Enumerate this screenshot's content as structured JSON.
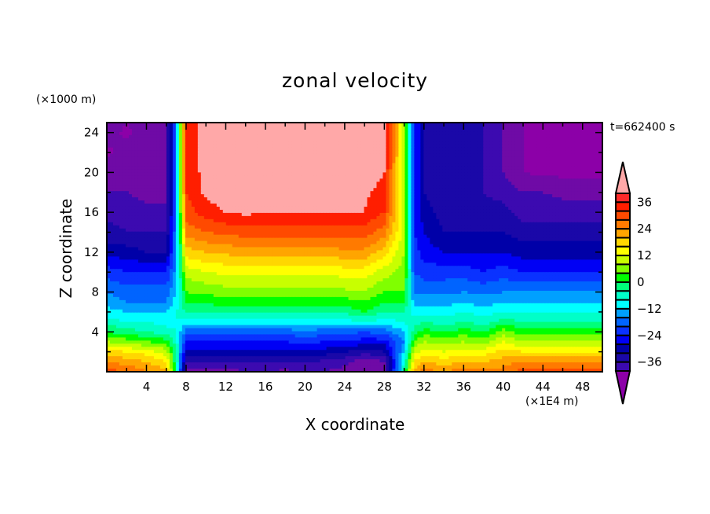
{
  "chart_data": {
    "type": "heatmap",
    "subtype": "filled-contour",
    "title": "zonal velocity",
    "xlabel": "X coordinate",
    "ylabel": "Z coordinate",
    "x_unit_label": "(×1E4 m)",
    "y_unit_label": "(×1000 m)",
    "time_label": "t=662400 s",
    "xlim": [
      0,
      50
    ],
    "ylim": [
      0,
      25
    ],
    "x_ticks": [
      4,
      8,
      12,
      16,
      20,
      24,
      28,
      32,
      36,
      40,
      44,
      48
    ],
    "x_tick_labels": [
      "4",
      "8",
      "12",
      "16",
      "20",
      "24",
      "28",
      "32",
      "36",
      "40",
      "44",
      "48"
    ],
    "x_minor_step": 2,
    "y_ticks": [
      4,
      8,
      12,
      16,
      20,
      24
    ],
    "y_tick_labels": [
      "4",
      "8",
      "12",
      "16",
      "20",
      "24"
    ],
    "y_minor_step": 2,
    "colorbar": {
      "levels": [
        -40,
        -36,
        -32,
        -28,
        -24,
        -20,
        -16,
        -12,
        -8,
        -4,
        0,
        4,
        8,
        12,
        16,
        20,
        24,
        28,
        32,
        36,
        40
      ],
      "tick_values": [
        36,
        24,
        12,
        0,
        -12,
        -24,
        -36
      ],
      "tick_labels": [
        "36",
        "24",
        "12",
        "0",
        "−12",
        "−24",
        "−36"
      ],
      "colors": [
        "#6f0aa6",
        "#3c0ab0",
        "#1a08a8",
        "#0000a8",
        "#0000f5",
        "#0a32ff",
        "#0064ff",
        "#00a0ff",
        "#00ffff",
        "#00ffc8",
        "#00ff7a",
        "#00ff00",
        "#80ff00",
        "#c8ff00",
        "#ffff00",
        "#ffd700",
        "#ffa500",
        "#ff7a00",
        "#ff4a00",
        "#ff1e00",
        "#ff2a2a"
      ],
      "over_color": "#ffa8a8",
      "under_color": "#8c00a8"
    },
    "grid_x": [
      0,
      2,
      4,
      6,
      7,
      8,
      10,
      12,
      14,
      16,
      18,
      20,
      22,
      24,
      26,
      28,
      30,
      31,
      32,
      34,
      36,
      38,
      40,
      42,
      44,
      46,
      48,
      50
    ],
    "grid_z": [
      0,
      1,
      2,
      3,
      4,
      5,
      6,
      7,
      8,
      10,
      12,
      14,
      16,
      18,
      20,
      22,
      24,
      25
    ],
    "values": [
      [
        34,
        32,
        28,
        26,
        0,
        -38,
        -38,
        -38,
        -36,
        -36,
        -37,
        -36,
        -36,
        -38,
        -37,
        -38,
        0,
        26,
        30,
        28,
        30,
        30,
        30,
        34,
        34,
        34,
        34,
        34
      ],
      [
        28,
        26,
        24,
        20,
        0,
        -32,
        -32,
        -32,
        -31,
        -32,
        -32,
        -31,
        -33,
        -34,
        -40,
        -36,
        -4,
        20,
        24,
        22,
        24,
        24,
        26,
        28,
        28,
        28,
        28,
        28
      ],
      [
        22,
        20,
        18,
        14,
        0,
        -26,
        -26,
        -26,
        -26,
        -26,
        -26,
        -25,
        -26,
        -28,
        -30,
        -28,
        -8,
        14,
        18,
        16,
        18,
        18,
        22,
        20,
        20,
        20,
        20,
        20
      ],
      [
        12,
        10,
        8,
        6,
        -2,
        -20,
        -20,
        -20,
        -20,
        -20,
        -20,
        -19,
        -20,
        -20,
        -22,
        -22,
        -12,
        8,
        12,
        10,
        12,
        10,
        16,
        12,
        12,
        12,
        12,
        12
      ],
      [
        4,
        2,
        0,
        -2,
        -4,
        -14,
        -14,
        -14,
        -14,
        -14,
        -14,
        -13,
        -14,
        -14,
        -16,
        -14,
        -8,
        2,
        6,
        4,
        6,
        4,
        10,
        6,
        6,
        6,
        6,
        6
      ],
      [
        -2,
        -4,
        -4,
        -6,
        -4,
        -6,
        -6,
        -6,
        -6,
        -6,
        -6,
        -6,
        -6,
        -6,
        -4,
        -6,
        -4,
        -2,
        0,
        -2,
        0,
        -2,
        2,
        0,
        0,
        0,
        0,
        0
      ],
      [
        -6,
        -8,
        -8,
        -8,
        -4,
        0,
        0,
        1,
        1,
        1,
        1,
        1,
        1,
        1,
        4,
        0,
        0,
        -6,
        -6,
        -6,
        -4,
        -6,
        -4,
        -4,
        -4,
        -4,
        -4,
        -4
      ],
      [
        -10,
        -12,
        -12,
        -12,
        -6,
        4,
        5,
        6,
        6,
        6,
        6,
        6,
        6,
        6,
        8,
        4,
        4,
        -10,
        -10,
        -10,
        -8,
        -10,
        -8,
        -8,
        -8,
        -8,
        -8,
        -8
      ],
      [
        -12,
        -14,
        -14,
        -14,
        -8,
        8,
        9,
        10,
        10,
        10,
        10,
        10,
        10,
        11,
        12,
        8,
        8,
        -12,
        -13,
        -13,
        -12,
        -13,
        -12,
        -12,
        -12,
        -12,
        -12,
        -12
      ],
      [
        -18,
        -20,
        -20,
        -20,
        -10,
        14,
        16,
        17,
        17,
        17,
        17,
        17,
        17,
        18,
        18,
        14,
        10,
        -16,
        -18,
        -18,
        -18,
        -20,
        -18,
        -20,
        -20,
        -20,
        -20,
        -20
      ],
      [
        -26,
        -26,
        -28,
        -28,
        -12,
        22,
        24,
        25,
        26,
        26,
        26,
        26,
        26,
        27,
        27,
        22,
        12,
        -18,
        -22,
        -24,
        -24,
        -24,
        -24,
        -26,
        -26,
        -26,
        -26,
        -26
      ],
      [
        -30,
        -32,
        -32,
        -32,
        -12,
        30,
        32,
        33,
        34,
        34,
        34,
        34,
        34,
        34,
        34,
        30,
        14,
        -20,
        -24,
        -28,
        -28,
        -28,
        -28,
        -30,
        -30,
        -30,
        -30,
        -30
      ],
      [
        -34,
        -34,
        -35,
        -36,
        -12,
        34,
        38,
        40,
        41,
        40,
        40,
        40,
        40,
        40,
        40,
        36,
        14,
        -20,
        -26,
        -30,
        -30,
        -30,
        -30,
        -34,
        -34,
        -34,
        -34,
        -34
      ],
      [
        -36,
        -36,
        -37,
        -36,
        -12,
        36,
        41,
        43,
        43,
        42,
        42,
        42,
        41,
        41,
        41,
        38,
        14,
        -20,
        -28,
        -31,
        -31,
        -32,
        -34,
        -36,
        -36,
        -37,
        -37,
        -37
      ],
      [
        -38,
        -38,
        -37,
        -36,
        -12,
        36,
        42,
        44,
        44,
        44,
        44,
        44,
        44,
        44,
        44,
        40,
        14,
        -20,
        -28,
        -32,
        -32,
        -32,
        -36,
        -40,
        -41,
        -41,
        -41,
        -41
      ],
      [
        -41,
        -38,
        -37,
        -36,
        -12,
        36,
        42,
        44,
        44,
        44,
        44,
        44,
        44,
        44,
        44,
        42,
        14,
        -20,
        -28,
        -32,
        -32,
        -32,
        -36,
        -40,
        -42,
        -42,
        -42,
        -41
      ],
      [
        -38,
        -41,
        -37,
        -36,
        -12,
        36,
        42,
        44,
        44,
        44,
        44,
        44,
        44,
        44,
        44,
        42,
        14,
        -20,
        -28,
        -32,
        -32,
        -32,
        -36,
        -40,
        -42,
        -42,
        -42,
        -41
      ],
      [
        -37,
        -40,
        -37,
        -36,
        -12,
        36,
        42,
        44,
        44,
        44,
        44,
        44,
        44,
        44,
        44,
        42,
        14,
        -20,
        -28,
        -32,
        -32,
        -32,
        -36,
        -40,
        -42,
        -42,
        -42,
        -41
      ]
    ]
  }
}
